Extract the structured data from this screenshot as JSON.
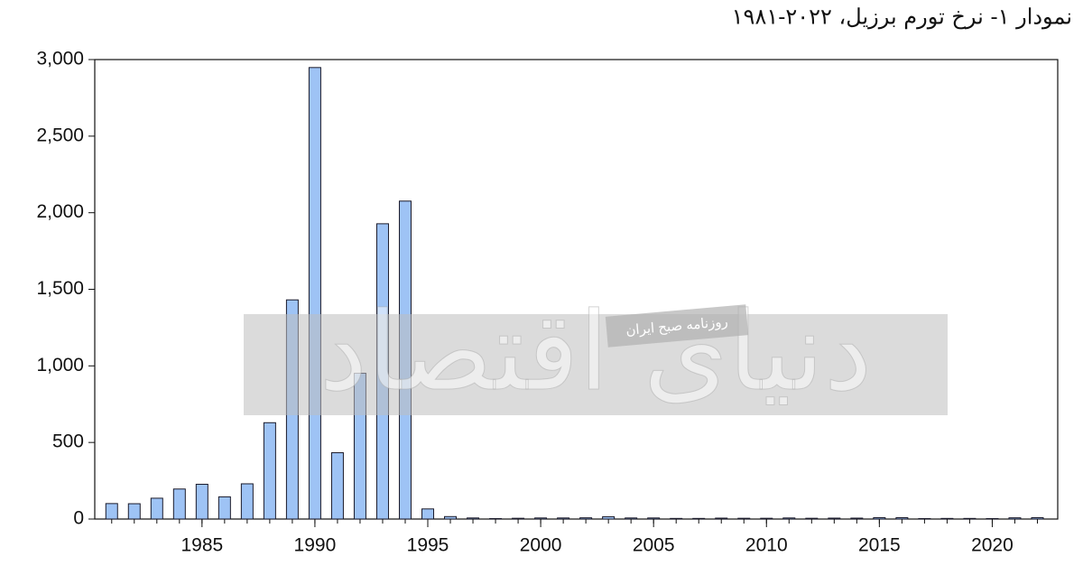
{
  "chart_data": {
    "type": "bar",
    "title": "نمودار ۱- نرخ تورم برزیل، ۲۰۲۲-۱۹۸۱",
    "x": [
      1981,
      1982,
      1983,
      1984,
      1985,
      1986,
      1987,
      1988,
      1989,
      1990,
      1991,
      1992,
      1993,
      1994,
      1995,
      1996,
      1997,
      1998,
      1999,
      2000,
      2001,
      2002,
      2003,
      2004,
      2005,
      2006,
      2007,
      2008,
      2009,
      2010,
      2011,
      2012,
      2013,
      2014,
      2015,
      2016,
      2017,
      2018,
      2019,
      2020,
      2021,
      2022
    ],
    "values": [
      101,
      100,
      136,
      196,
      227,
      145,
      230,
      629,
      1431,
      2948,
      433,
      952,
      1928,
      2076,
      66,
      16,
      7,
      3,
      5,
      7,
      7,
      8,
      15,
      7,
      7,
      4,
      4,
      6,
      5,
      5,
      7,
      5,
      6,
      6,
      9,
      9,
      3,
      4,
      4,
      3,
      8,
      9
    ],
    "color": "#9ec3f5",
    "xlim": [
      1980.25,
      2022.9
    ],
    "xticks": [
      1985,
      1990,
      1995,
      2000,
      2005,
      2010,
      2015,
      2020
    ],
    "ylim": [
      0,
      3000
    ],
    "yticks": [
      0,
      500,
      {
        "value": 1000,
        "label": "1,000"
      },
      {
        "value": 1500,
        "label": "1,500"
      },
      {
        "value": 2000,
        "label": "2,000"
      },
      {
        "value": 2500,
        "label": "2,500"
      },
      {
        "value": 3000,
        "label": "3,000"
      }
    ],
    "watermark": {
      "brand": "دنیای اقتصاد",
      "tagline": "روزنامه صبح ایران"
    }
  }
}
